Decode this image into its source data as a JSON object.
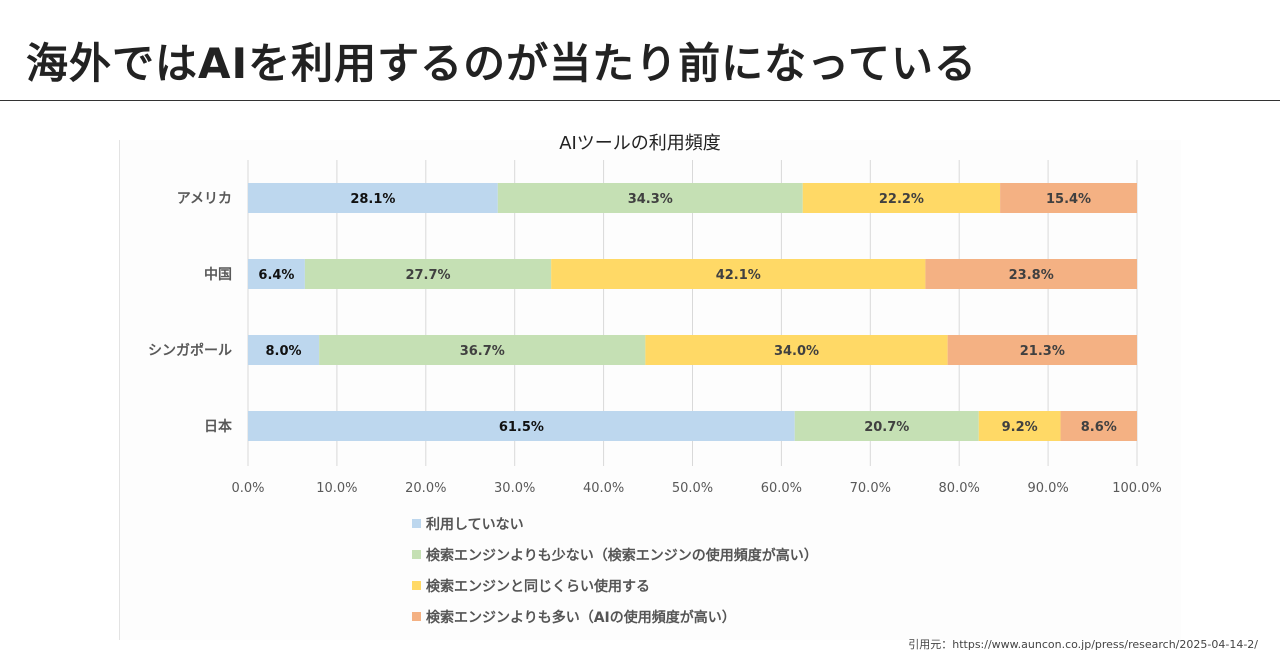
{
  "page": {
    "title": "海外ではAIを利用するのが当たり前になっている",
    "citation": "引用元：https://www.auncon.co.jp/press/research/2025-04-14-2/"
  },
  "colors": {
    "not_using": "#bdd7ee",
    "less_than_search": "#c5e0b4",
    "same_as_search": "#ffd966",
    "more_than_search": "#f4b183",
    "grid": "#d9d9d9",
    "axis_text": "#595959",
    "label_dark": "#111111",
    "label_mid": "#404040"
  },
  "chart_data": {
    "type": "bar",
    "orientation": "horizontal",
    "stacked": true,
    "title": "AIツールの利用頻度",
    "categories": [
      "アメリカ",
      "中国",
      "シンガポール",
      "日本"
    ],
    "series": [
      {
        "name": "利用していない",
        "color_key": "not_using",
        "values": [
          28.1,
          6.4,
          8.0,
          61.5
        ],
        "labels": [
          "28.1%",
          "6.4%",
          "8.0%",
          "61.5%"
        ]
      },
      {
        "name": "検索エンジンよりも少ない（検索エンジンの使用頻度が高い）",
        "color_key": "less_than_search",
        "values": [
          34.3,
          27.7,
          36.7,
          20.7
        ],
        "labels": [
          "34.3%",
          "27.7%",
          "36.7%",
          "20.7%"
        ]
      },
      {
        "name": "検索エンジンと同じくらい使用する",
        "color_key": "same_as_search",
        "values": [
          22.2,
          42.1,
          34.0,
          9.2
        ],
        "labels": [
          "22.2%",
          "42.1%",
          "34.0%",
          "9.2%"
        ]
      },
      {
        "name": "検索エンジンよりも多い（AIの使用頻度が高い）",
        "color_key": "more_than_search",
        "values": [
          15.4,
          23.8,
          21.3,
          8.6
        ],
        "labels": [
          "15.4%",
          "23.8%",
          "21.3%",
          "8.6%"
        ]
      }
    ],
    "xlim": [
      0,
      100
    ],
    "xticks": [
      0,
      10,
      20,
      30,
      40,
      50,
      60,
      70,
      80,
      90,
      100
    ],
    "xtick_labels": [
      "0.0%",
      "10.0%",
      "20.0%",
      "30.0%",
      "40.0%",
      "50.0%",
      "60.0%",
      "70.0%",
      "80.0%",
      "90.0%",
      "100.0%"
    ],
    "grid": true,
    "legend_position": "bottom"
  }
}
